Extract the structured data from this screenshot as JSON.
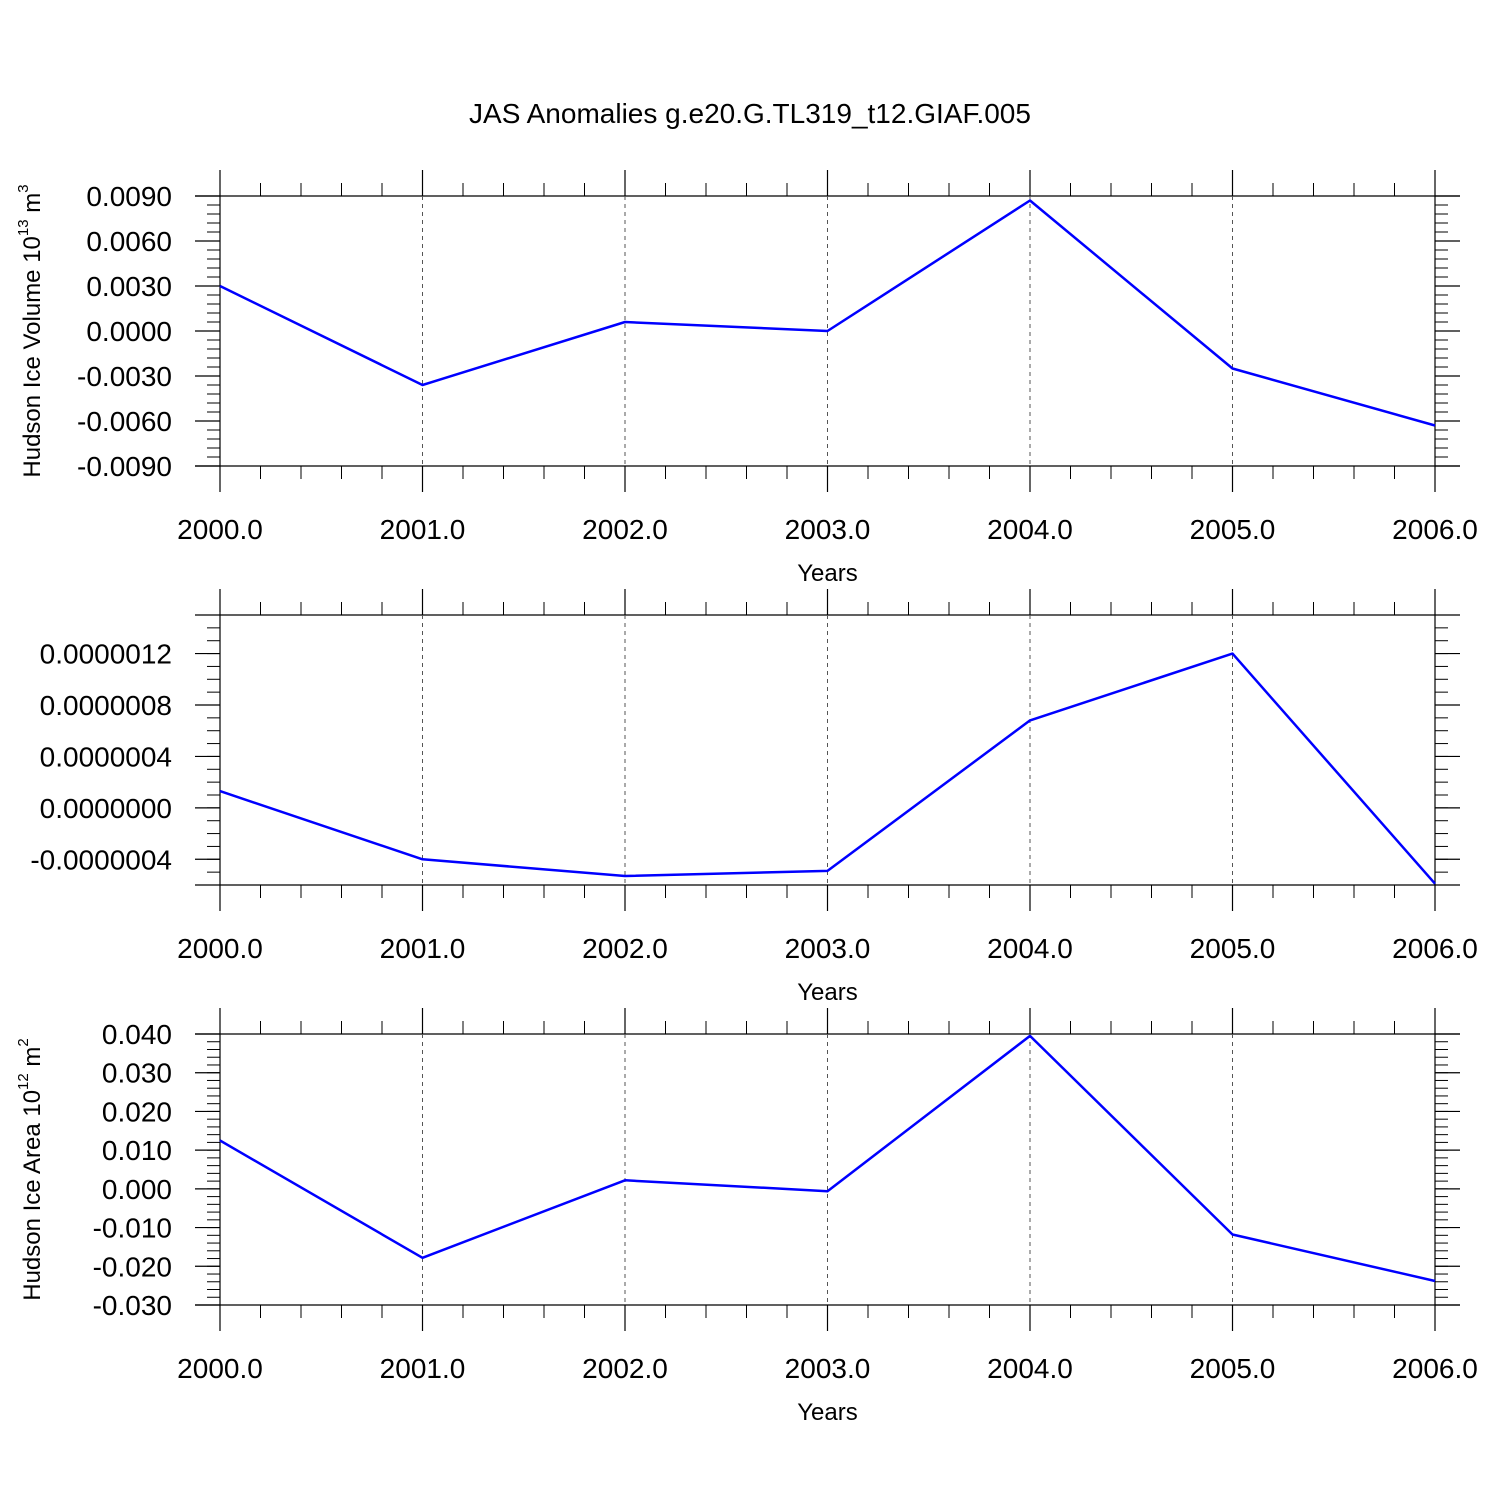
{
  "title": "JAS Anomalies g.e20.G.TL319_t12.GIAF.005",
  "chart_data": [
    {
      "type": "line",
      "title": "",
      "xlabel": "Years",
      "ylabel_base": "Hudson Ice Volume 10",
      "ylabel_sup1": "13",
      "ylabel_unit": " m",
      "ylabel_sup2": "3",
      "xlim": [
        2000.0,
        2006.0
      ],
      "ylim": [
        -0.009,
        0.009
      ],
      "x_ticks": [
        "2000.0",
        "2001.0",
        "2002.0",
        "2003.0",
        "2004.0",
        "2005.0",
        "2006.0"
      ],
      "y_tick_values": [
        0.009,
        0.006,
        0.003,
        0.0,
        -0.003,
        -0.006,
        -0.009
      ],
      "y_tick_labels": [
        "0.0090",
        "0.0060",
        "0.0030",
        "0.0000",
        "-0.0030",
        "-0.0060",
        "-0.0090"
      ],
      "y_minor_step": 0.0006,
      "grid": "vertical dashed at major x ticks",
      "line_color": "#0000ff",
      "series": [
        {
          "x": [
            2000,
            2001,
            2002,
            2003,
            2004,
            2005,
            2006
          ],
          "values": [
            0.003,
            -0.0036,
            0.0006,
            0.0,
            0.0087,
            -0.0025,
            -0.0063
          ]
        }
      ]
    },
    {
      "type": "line",
      "title": "",
      "xlabel": "Years",
      "ylabel_base": "",
      "ylabel_sup1": "",
      "ylabel_unit": "",
      "ylabel_sup2": "",
      "xlim": [
        2000.0,
        2006.0
      ],
      "ylim": [
        -6e-07,
        1.5e-06
      ],
      "x_ticks": [
        "2000.0",
        "2001.0",
        "2002.0",
        "2003.0",
        "2004.0",
        "2005.0",
        "2006.0"
      ],
      "y_tick_values": [
        1.2e-06,
        8e-07,
        4e-07,
        0.0,
        -4e-07
      ],
      "y_tick_labels": [
        "0.0000012",
        "0.0000008",
        "0.0000004",
        "0.0000000",
        "-0.0000004"
      ],
      "y_minor_step": 1e-07,
      "grid": "vertical dashed at major x ticks",
      "line_color": "#0000ff",
      "series": [
        {
          "x": [
            2000,
            2001,
            2002,
            2003,
            2004,
            2005,
            2006
          ],
          "values": [
            1.3e-07,
            -4e-07,
            -5.3e-07,
            -4.9e-07,
            6.8e-07,
            1.2e-06,
            -5.9e-07
          ]
        }
      ]
    },
    {
      "type": "line",
      "title": "",
      "xlabel": "Years",
      "ylabel_base": "Hudson Ice Area 10",
      "ylabel_sup1": "12",
      "ylabel_unit": " m",
      "ylabel_sup2": "2",
      "xlim": [
        2000.0,
        2006.0
      ],
      "ylim": [
        -0.03,
        0.04
      ],
      "x_ticks": [
        "2000.0",
        "2001.0",
        "2002.0",
        "2003.0",
        "2004.0",
        "2005.0",
        "2006.0"
      ],
      "y_tick_values": [
        0.04,
        0.03,
        0.02,
        0.01,
        0.0,
        -0.01,
        -0.02,
        -0.03
      ],
      "y_tick_labels": [
        "0.040",
        "0.030",
        "0.020",
        "0.010",
        "0.000",
        "-0.010",
        "-0.020",
        "-0.030"
      ],
      "y_minor_step": 0.002,
      "grid": "vertical dashed at major x ticks",
      "line_color": "#0000ff",
      "series": [
        {
          "x": [
            2000,
            2001,
            2002,
            2003,
            2004,
            2005,
            2006
          ],
          "values": [
            0.0125,
            -0.0178,
            0.0022,
            -0.0006,
            0.0395,
            -0.0118,
            -0.0238
          ]
        }
      ]
    }
  ]
}
